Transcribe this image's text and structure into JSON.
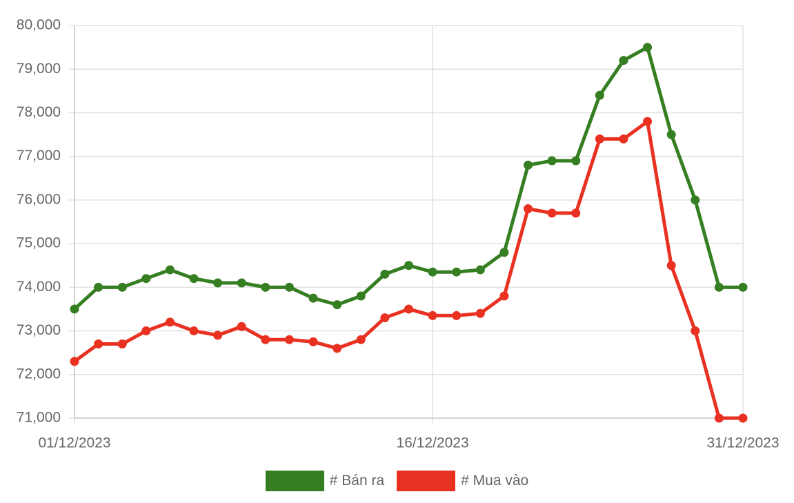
{
  "chart_data": {
    "type": "line",
    "categories": [
      "01/12/2023",
      null,
      null,
      null,
      null,
      null,
      null,
      null,
      null,
      null,
      null,
      null,
      null,
      null,
      null,
      "16/12/2023",
      null,
      null,
      null,
      null,
      null,
      null,
      null,
      null,
      null,
      null,
      null,
      null,
      "31/12/2023"
    ],
    "series": [
      {
        "name": "# Bán ra",
        "color": "#367e22",
        "values": [
          73500,
          74000,
          74000,
          74200,
          74400,
          74200,
          74100,
          74100,
          74000,
          74000,
          73750,
          73600,
          73800,
          74300,
          74500,
          74350,
          74350,
          74400,
          74800,
          76800,
          76900,
          76900,
          78400,
          79200,
          79500,
          77500,
          76000,
          74000,
          74000
        ]
      },
      {
        "name": "# Mua vào",
        "color": "#e93122",
        "values": [
          72300,
          72700,
          72700,
          73000,
          73200,
          73000,
          72900,
          73100,
          72800,
          72800,
          72750,
          72600,
          72800,
          73300,
          73500,
          73350,
          73350,
          73400,
          73800,
          75800,
          75700,
          75700,
          77400,
          77400,
          77800,
          74500,
          73000,
          71000,
          71000
        ]
      }
    ],
    "ylim": [
      71000,
      80000
    ],
    "yticks": [
      {
        "value": 71000,
        "label": "71,000"
      },
      {
        "value": 72000,
        "label": "72,000"
      },
      {
        "value": 73000,
        "label": "73,000"
      },
      {
        "value": 74000,
        "label": "74,000"
      },
      {
        "value": 75000,
        "label": "75,000"
      },
      {
        "value": 76000,
        "label": "76,000"
      },
      {
        "value": 77000,
        "label": "77,000"
      },
      {
        "value": 78000,
        "label": "78,000"
      },
      {
        "value": 79000,
        "label": "79,000"
      },
      {
        "value": 80000,
        "label": "80,000"
      }
    ],
    "grid": true,
    "legend": "bottom"
  }
}
